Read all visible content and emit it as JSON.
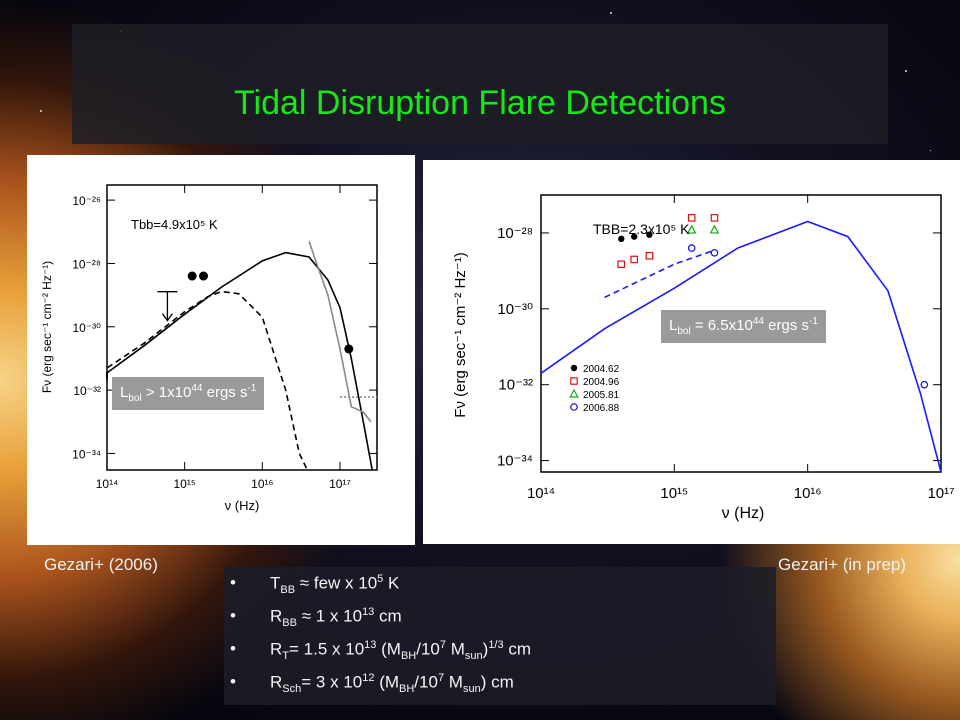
{
  "slide": {
    "title": "Tidal Disruption Flare Detections",
    "left_caption": "Gezari+ (2006)",
    "right_caption": "Gezari+ (in prep)",
    "colors": {
      "title": "#17e817",
      "background": "#0a0a14"
    }
  },
  "left_box": {
    "pre": "L",
    "sub": "bol",
    "mid": " > 1x10",
    "sup": "44",
    "post": " ergs s",
    "sup2": "-1"
  },
  "right_box": {
    "pre": "L",
    "sub": "bol",
    "mid": " = 6.5x10",
    "sup": "44",
    "post": " ergs s",
    "sup2": "-1"
  },
  "bullets": [
    {
      "parts": [
        {
          "t": "T"
        },
        {
          "sub": "BB"
        },
        {
          "t": " ≈ few x 10"
        },
        {
          "sup": "5"
        },
        {
          "t": " K"
        }
      ]
    },
    {
      "parts": [
        {
          "t": "R"
        },
        {
          "sub": "BB"
        },
        {
          "t": " ≈ 1 x 10"
        },
        {
          "sup": "13"
        },
        {
          "t": " cm"
        }
      ]
    },
    {
      "parts": [
        {
          "t": "R"
        },
        {
          "sub": "T"
        },
        {
          "t": "= 1.5 x 10"
        },
        {
          "sup": "13"
        },
        {
          "t": " (M"
        },
        {
          "sub": "BH"
        },
        {
          "t": "/10"
        },
        {
          "sup": "7"
        },
        {
          "t": " M"
        },
        {
          "sub": "sun"
        },
        {
          "t": ")"
        },
        {
          "sup": "1/3"
        },
        {
          "t": " cm"
        }
      ]
    },
    {
      "parts": [
        {
          "t": "R"
        },
        {
          "sub": "Sch"
        },
        {
          "t": "= 3 x 10"
        },
        {
          "sup": "12"
        },
        {
          "t": " (M"
        },
        {
          "sub": "BH"
        },
        {
          "t": "/10"
        },
        {
          "sup": "7"
        },
        {
          "t": " M"
        },
        {
          "sub": "sun"
        },
        {
          "t": ") cm"
        }
      ]
    }
  ],
  "chart_data": [
    {
      "type": "line",
      "log_x": true,
      "log_y": true,
      "xlabel": "ν (Hz)",
      "ylabel": "Fν (erg sec⁻¹ cm⁻² Hz⁻¹)",
      "annotation": "Tbb=4.9x10⁵ K",
      "xlim": [
        100000000000000.0,
        3e+17
      ],
      "ylim": [
        3e-35,
        3e-26
      ],
      "x_ticks": [
        100000000000000.0,
        1000000000000000.0,
        1e+16,
        1e+17
      ],
      "x_tick_labels": [
        "10¹⁴",
        "10¹⁵",
        "10¹⁶",
        "10¹⁷"
      ],
      "y_ticks": [
        1e-26,
        1e-28,
        1e-30,
        1e-32,
        1e-34
      ],
      "y_tick_labels": [
        "10⁻²⁶",
        "10⁻²⁸",
        "10⁻³⁰",
        "10⁻³²",
        "10⁻³⁴"
      ],
      "series": [
        {
          "style": "solid",
          "color": "#000000",
          "x": [
            80000000000000.0,
            100000000000000.0,
            300000000000000.0,
            1000000000000000.0,
            3000000000000000.0,
            1e+16,
            2e+16,
            4e+16,
            7e+16,
            1e+17,
            1.4e+17,
            2e+17,
            2.6e+17
          ],
          "y": [
            2e-32,
            3.5e-32,
            2.5e-31,
            2.5e-30,
            1.8e-29,
            1.2e-28,
            2.2e-28,
            1.6e-28,
            3e-29,
            4e-30,
            1e-31,
            1e-33,
            3e-35
          ]
        },
        {
          "style": "dashed",
          "color": "#000000",
          "x": [
            80000000000000.0,
            100000000000000.0,
            300000000000000.0,
            1000000000000000.0,
            2000000000000000.0,
            3000000000000000.0,
            5000000000000000.0,
            1e+16,
            2e+16,
            3e+16,
            3.8e+16
          ],
          "y": [
            2.5e-32,
            5e-32,
            3e-31,
            3e-30,
            9e-30,
            1.3e-29,
            1.1e-29,
            2e-30,
            1e-32,
            1e-34,
            3e-35
          ]
        },
        {
          "style": "solid",
          "color": "#888888",
          "x": [
            4e+16,
            5e+16,
            7e+16,
            1e+17,
            1.4e+17,
            2e+17,
            2.5e+17
          ],
          "y": [
            5e-28,
            1e-28,
            1e-29,
            2e-31,
            3e-33,
            2e-33,
            1e-33
          ]
        },
        {
          "style": "dotted",
          "color": "#888888",
          "x": [
            1e+17,
            3e+17
          ],
          "y": [
            6e-33,
            6e-33
          ]
        }
      ],
      "points": [
        {
          "x": 1250000000000000.0,
          "y": 4e-29
        },
        {
          "x": 1750000000000000.0,
          "y": 4e-29
        },
        {
          "x": 1.3e+17,
          "y": 2e-31
        }
      ],
      "upper_limit": {
        "x": 600000000000000.0,
        "y": 3e-30
      }
    },
    {
      "type": "line",
      "log_x": true,
      "log_y": true,
      "xlabel": "ν (Hz)",
      "ylabel": "Fν (erg sec⁻¹ cm⁻² Hz⁻¹)",
      "annotation": "TBB=2.3x10⁵ K",
      "xlim": [
        100000000000000.0,
        1e+17
      ],
      "ylim": [
        5e-35,
        1e-27
      ],
      "x_ticks": [
        100000000000000.0,
        1000000000000000.0,
        1e+16,
        1e+17
      ],
      "x_tick_labels": [
        "10¹⁴",
        "10¹⁵",
        "10¹⁶",
        "10¹⁷"
      ],
      "y_ticks": [
        1e-28,
        1e-30,
        1e-32,
        1e-34
      ],
      "y_tick_labels": [
        "10⁻²⁸",
        "10⁻³⁰",
        "10⁻³²",
        "10⁻³⁴"
      ],
      "legend": "bottom-left",
      "series": [
        {
          "style": "solid",
          "color": "#1a1aff",
          "x": [
            100000000000000.0,
            300000000000000.0,
            1000000000000000.0,
            3000000000000000.0,
            1e+16,
            2e+16,
            4e+16,
            7e+16,
            1e+17
          ],
          "y": [
            2e-32,
            3e-31,
            3.5e-30,
            4e-29,
            2e-28,
            8e-29,
            3e-30,
            6e-33,
            5e-35
          ]
        },
        {
          "style": "dashed",
          "color": "#1a1aff",
          "x": [
            300000000000000.0,
            1000000000000000.0,
            2000000000000000.0
          ],
          "y": [
            2e-30,
            1.5e-29,
            3.5e-29
          ]
        }
      ],
      "scatter": [
        {
          "name": "2004.62",
          "color": "#000000",
          "marker": "circle-filled",
          "x": [
            400000000000000.0,
            500000000000000.0,
            650000000000000.0
          ],
          "y": [
            7e-29,
            8e-29,
            9e-29
          ]
        },
        {
          "name": "2004.96",
          "color": "#dd1111",
          "marker": "square-open",
          "x": [
            400000000000000.0,
            500000000000000.0,
            650000000000000.0,
            1350000000000000.0,
            2000000000000000.0
          ],
          "y": [
            1.5e-29,
            2e-29,
            2.5e-29,
            2.5e-28,
            2.5e-28
          ]
        },
        {
          "name": "2005.81",
          "color": "#11aa11",
          "marker": "triangle-open",
          "x": [
            1350000000000000.0,
            2000000000000000.0
          ],
          "y": [
            1.2e-28,
            1.2e-28
          ]
        },
        {
          "name": "2006.88",
          "color": "#1111dd",
          "marker": "circle-open",
          "x": [
            1350000000000000.0,
            2000000000000000.0,
            7.5e+16
          ],
          "y": [
            4e-29,
            3e-29,
            1e-32
          ]
        }
      ]
    }
  ]
}
